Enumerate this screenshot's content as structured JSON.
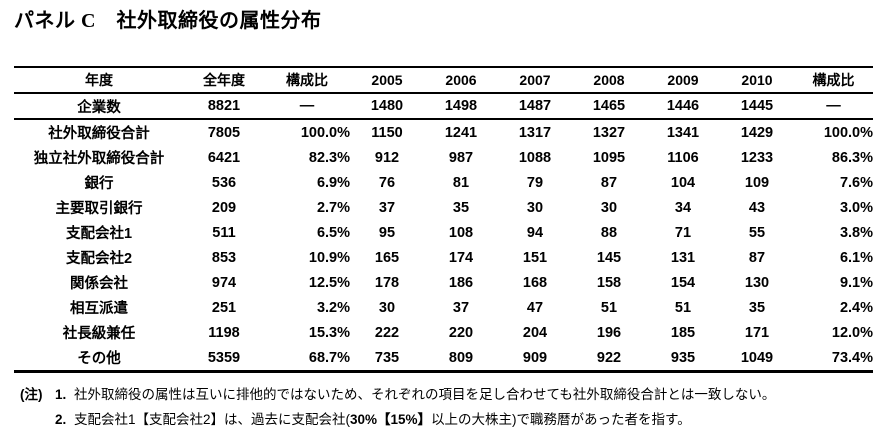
{
  "title": "パネル C　社外取締役の属性分布",
  "colors": {
    "text": "#000000",
    "background": "#ffffff",
    "rules": "#000000"
  },
  "table": {
    "header": [
      "年度",
      "全年度",
      "構成比",
      "2005",
      "2006",
      "2007",
      "2008",
      "2009",
      "2010",
      "構成比"
    ],
    "rows": [
      {
        "label": "企業数",
        "divider_below": true,
        "values": [
          "8821",
          "—",
          "1480",
          "1498",
          "1487",
          "1465",
          "1446",
          "1445",
          "—"
        ]
      },
      {
        "label": "社外取締役合計",
        "values": [
          "7805",
          "100.0%",
          "1150",
          "1241",
          "1317",
          "1327",
          "1341",
          "1429",
          "100.0%"
        ]
      },
      {
        "label": "独立社外取締役合計",
        "values": [
          "6421",
          "82.3%",
          "912",
          "987",
          "1088",
          "1095",
          "1106",
          "1233",
          "86.3%"
        ]
      },
      {
        "label": "銀行",
        "values": [
          "536",
          "6.9%",
          "76",
          "81",
          "79",
          "87",
          "104",
          "109",
          "7.6%"
        ]
      },
      {
        "label": "主要取引銀行",
        "values": [
          "209",
          "2.7%",
          "37",
          "35",
          "30",
          "30",
          "34",
          "43",
          "3.0%"
        ]
      },
      {
        "label": "支配会社1",
        "values": [
          "511",
          "6.5%",
          "95",
          "108",
          "94",
          "88",
          "71",
          "55",
          "3.8%"
        ]
      },
      {
        "label": "支配会社2",
        "values": [
          "853",
          "10.9%",
          "165",
          "174",
          "151",
          "145",
          "131",
          "87",
          "6.1%"
        ]
      },
      {
        "label": "関係会社",
        "values": [
          "974",
          "12.5%",
          "178",
          "186",
          "168",
          "158",
          "154",
          "130",
          "9.1%"
        ]
      },
      {
        "label": "相互派遣",
        "values": [
          "251",
          "3.2%",
          "30",
          "37",
          "47",
          "51",
          "51",
          "35",
          "2.4%"
        ]
      },
      {
        "label": "社長級兼任",
        "values": [
          "1198",
          "15.3%",
          "222",
          "220",
          "204",
          "196",
          "185",
          "171",
          "12.0%"
        ]
      },
      {
        "label": "その他",
        "values": [
          "5359",
          "68.7%",
          "735",
          "809",
          "909",
          "922",
          "935",
          "1049",
          "73.4%"
        ]
      }
    ]
  },
  "notes": {
    "prefix": "(注)",
    "items": [
      {
        "num": "1.",
        "segments": [
          {
            "text": "社外取締役の属性は互いに排他的ではないため、それぞれの項目を足し合わせても社外取締役合計とは一致しない。",
            "bold": false
          }
        ]
      },
      {
        "num": "2.",
        "segments": [
          {
            "text": "支配会社1【支配会社2】は、過去に支配会社(",
            "bold": false
          },
          {
            "text": "30%【15%】",
            "bold": true
          },
          {
            "text": "以上の大株主)で職務暦があった者を指す。",
            "bold": false
          }
        ]
      }
    ]
  }
}
